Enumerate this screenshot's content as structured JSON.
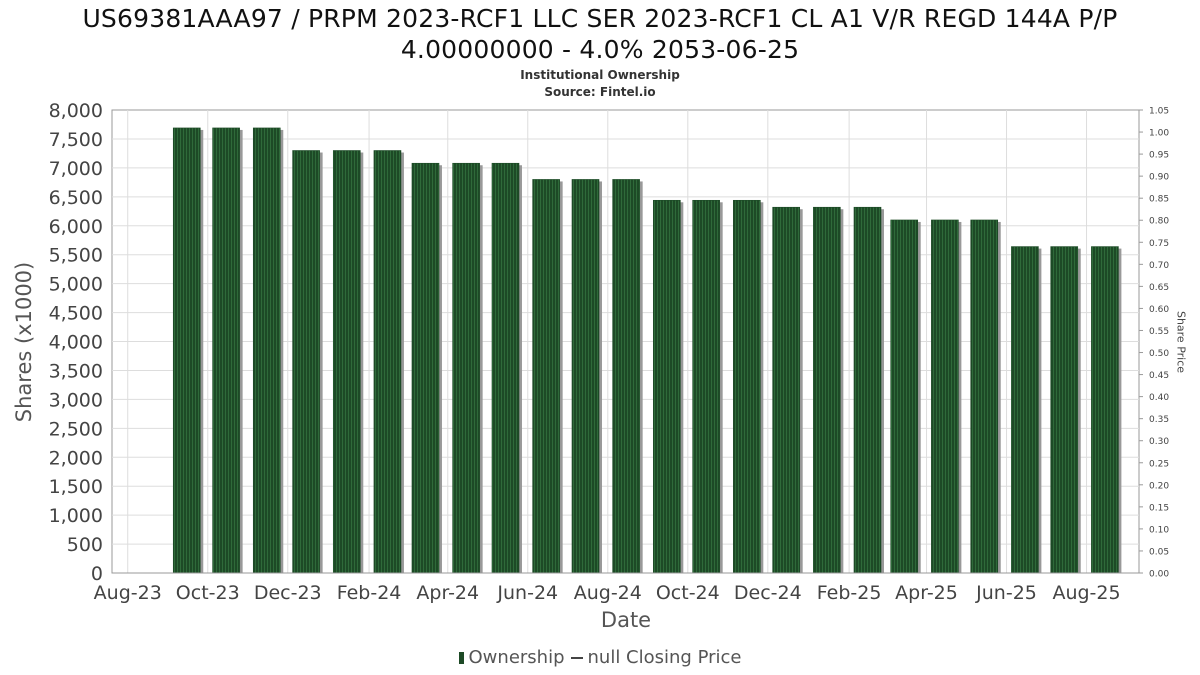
{
  "header": {
    "title_line1": "US69381AAA97 / PRPM 2023-RCF1 LLC SER 2023-RCF1 CL A1 V/R REGD 144A P/P",
    "title_line2": "4.00000000 - 4.0% 2053-06-25",
    "subtitle": "Institutional Ownership",
    "source": "Source: Fintel.io"
  },
  "legend": {
    "ownership_label": "Ownership",
    "price_label": "null Closing Price"
  },
  "colors": {
    "bar": "#1d4a26",
    "bar_stripe": "#2f6a3a",
    "bar_shadow": "#999999",
    "grid": "#dddddd",
    "frame": "#999999"
  },
  "chart_data": {
    "type": "bar",
    "xlabel": "Date",
    "ylabel": "Shares (x1000)",
    "y2label": "Share Price",
    "ylim": [
      0,
      8000
    ],
    "y2lim": [
      0,
      1.05
    ],
    "y_ticks": [
      "0",
      "500",
      "1,000",
      "1,500",
      "2,000",
      "2,500",
      "3,000",
      "3,500",
      "4,000",
      "4,500",
      "5,000",
      "5,500",
      "6,000",
      "6,500",
      "7,000",
      "7,500",
      "8,000"
    ],
    "y2_ticks": [
      "0.00",
      "0.05",
      "0.10",
      "0.15",
      "0.20",
      "0.25",
      "0.30",
      "0.35",
      "0.40",
      "0.45",
      "0.50",
      "0.55",
      "0.60",
      "0.65",
      "0.70",
      "0.75",
      "0.80",
      "0.85",
      "0.90",
      "0.95",
      "1.00",
      "1.05"
    ],
    "x_ticks": [
      "Aug-23",
      "Oct-23",
      "Dec-23",
      "Feb-24",
      "Apr-24",
      "Jun-24",
      "Aug-24",
      "Oct-24",
      "Dec-24",
      "Feb-25",
      "Apr-25",
      "Jun-25",
      "Aug-25"
    ],
    "grid": true,
    "legend_position": "bottom",
    "series": [
      {
        "name": "Ownership",
        "type": "bar",
        "x": [
          "2023-09-15",
          "2023-10-15",
          "2023-11-15",
          "2023-12-15",
          "2024-01-15",
          "2024-02-15",
          "2024-03-15",
          "2024-04-15",
          "2024-05-15",
          "2024-06-15",
          "2024-07-15",
          "2024-08-15",
          "2024-09-15",
          "2024-10-15",
          "2024-11-15",
          "2024-12-15",
          "2025-01-15",
          "2025-02-15",
          "2025-03-15",
          "2025-04-15",
          "2025-05-15",
          "2025-06-15",
          "2025-07-15",
          "2025-08-15"
        ],
        "values": [
          7690,
          7690,
          7690,
          7300,
          7300,
          7300,
          7080,
          7080,
          7080,
          6800,
          6800,
          6800,
          6440,
          6440,
          6440,
          6320,
          6320,
          6320,
          6100,
          6100,
          6100,
          5640,
          5640,
          5640
        ]
      },
      {
        "name": "null Closing Price",
        "type": "line",
        "values": []
      }
    ]
  }
}
